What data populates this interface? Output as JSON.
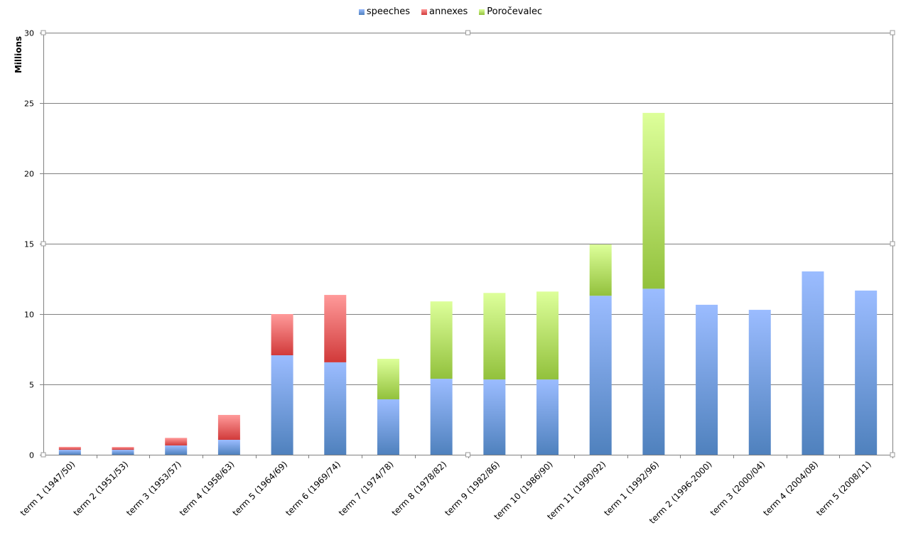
{
  "chart_data": {
    "type": "bar",
    "stacked": true,
    "title": "",
    "xlabel": "",
    "ylabel": "Millions",
    "ylim": [
      0,
      30
    ],
    "yticks": [
      0,
      5,
      10,
      15,
      20,
      25,
      30
    ],
    "grid": true,
    "legend_position": "top",
    "categories": [
      "term 1 (1947/50)",
      "term 2 (1951/53)",
      "term 3 (1953/57)",
      "term 4 (1958/63)",
      "term 5 (1964/69)",
      "term 6 (1969/74)",
      "term 7 (1974/78)",
      "term 8 (1978/82)",
      "term 9 (1982/86)",
      "term 10 (1986/90)",
      "term 11 (1990/92)",
      "term 1 (1992/96)",
      "term 2 (1996-2000)",
      "term 3 (2000/04)",
      "term 4 (2004/08)",
      "term 5 (2008/11)"
    ],
    "series": [
      {
        "name": "speeches",
        "color": "#4f81bd",
        "light": "#9bbcff",
        "values": [
          0.35,
          0.35,
          0.66,
          1.06,
          7.07,
          6.57,
          3.94,
          5.4,
          5.35,
          5.35,
          11.3,
          11.8,
          10.66,
          10.3,
          13.03,
          11.67
        ]
      },
      {
        "name": "annexes",
        "color": "#d13a3a",
        "light": "#ff9a9a",
        "values": [
          0.21,
          0.2,
          0.54,
          1.77,
          2.93,
          4.79,
          0,
          0,
          0,
          0,
          0,
          0,
          0,
          0,
          0,
          0
        ]
      },
      {
        "name": "Poročevalec",
        "color": "#92c13c",
        "light": "#ddff9a",
        "values": [
          0,
          0,
          0,
          0,
          0,
          0,
          2.88,
          5.5,
          6.15,
          6.25,
          3.65,
          12.5,
          0,
          0,
          0,
          0
        ]
      }
    ]
  }
}
